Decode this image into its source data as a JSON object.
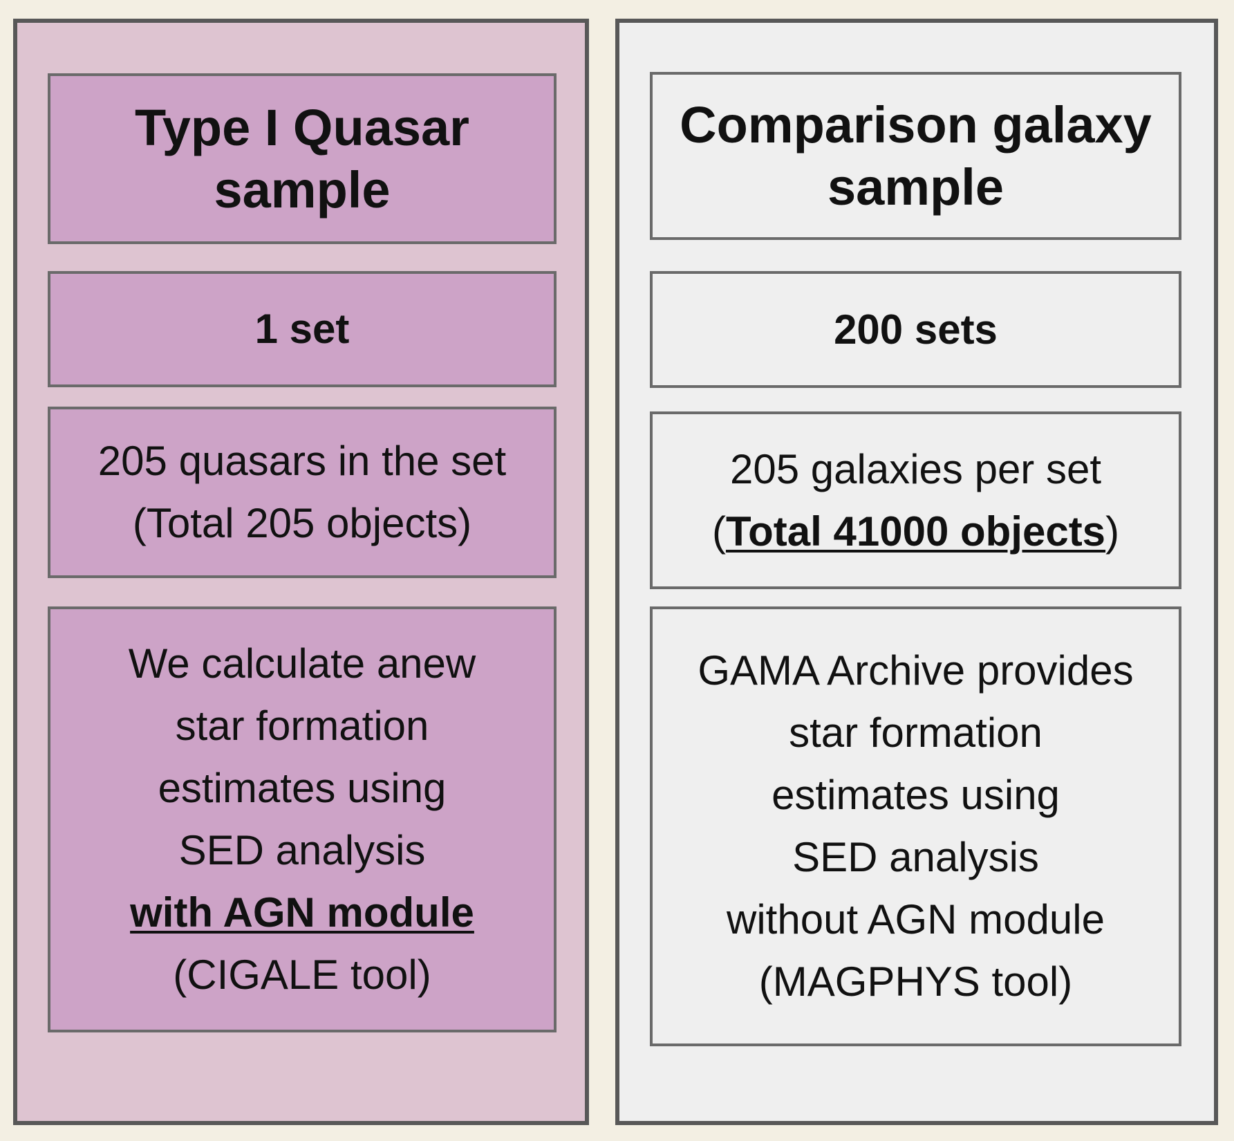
{
  "quasar": {
    "heading": [
      "Type I Quasar",
      "sample"
    ],
    "sets": "1 set",
    "objects": [
      "205 quasars in the set",
      "(Total 205 objects)"
    ],
    "method": {
      "lines": [
        "We calculate anew",
        "star formation",
        "estimates using",
        "SED analysis"
      ],
      "module": "with AGN module",
      "tool": "(CIGALE tool)"
    }
  },
  "galaxy": {
    "heading": [
      "Comparison galaxy",
      "sample"
    ],
    "sets": "200 sets",
    "objects": {
      "line1": "205 galaxies per set",
      "open": "(",
      "total": "Total 41000 objects",
      "close": ")"
    },
    "method": {
      "lines": [
        "GAMA Archive provides",
        "star formation",
        "estimates using",
        "SED analysis"
      ],
      "module": "without AGN module",
      "tool": "(MAGPHYS tool)"
    }
  },
  "colors": {
    "background": "#f3efe3",
    "quasar_panel": "#dec4d1",
    "quasar_box": "#cda3c7",
    "galaxy_panel": "#efefef",
    "border": "#585858"
  }
}
